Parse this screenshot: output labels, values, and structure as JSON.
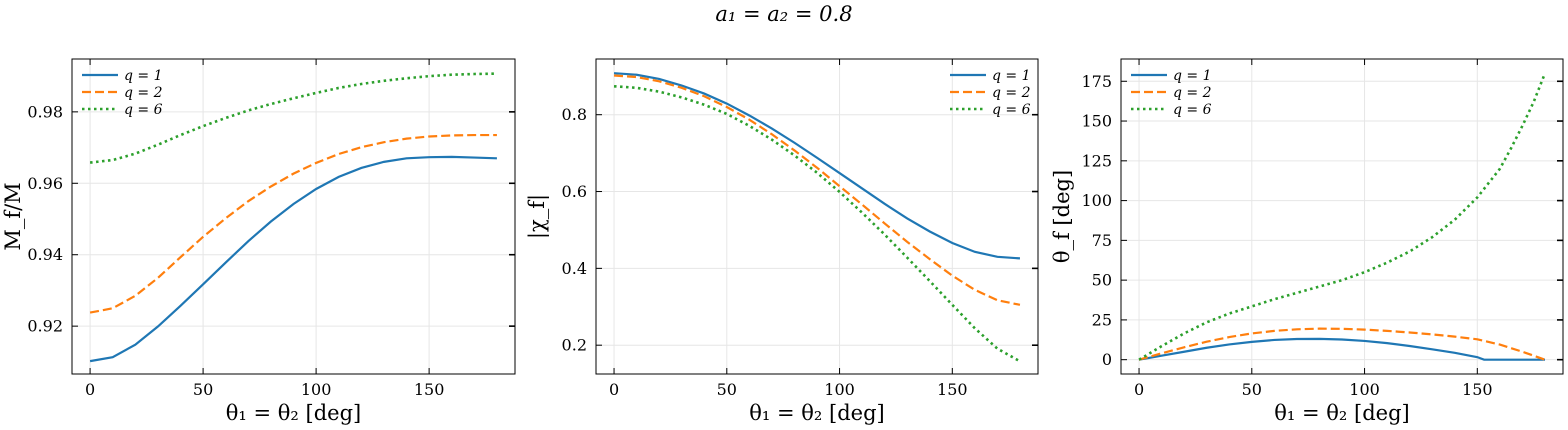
{
  "figure_title": "a₁ = a₂ = 0.8",
  "chart_data": [
    {
      "type": "line",
      "title": "",
      "xlabel": "θ₁ = θ₂ [deg]",
      "ylabel": "M_f/M",
      "xlim": [
        -8,
        188
      ],
      "ylim": [
        0.9066,
        0.9948
      ],
      "xticks": [
        0,
        50,
        100,
        150
      ],
      "yticks": [
        0.92,
        0.94,
        0.96,
        0.98
      ],
      "ytick_labels": [
        "0.92",
        "0.94",
        "0.96",
        "0.98"
      ],
      "grid": true,
      "legend_position": "top-left",
      "series": [
        {
          "name": "q = 1",
          "color": "#1f77b4",
          "style": "solid",
          "x": [
            0,
            10,
            20,
            30,
            40,
            50,
            60,
            70,
            80,
            90,
            100,
            110,
            120,
            130,
            140,
            150,
            160,
            170,
            180
          ],
          "y": [
            0.9102,
            0.9113,
            0.9148,
            0.9199,
            0.9257,
            0.9317,
            0.9378,
            0.9438,
            0.9493,
            0.9542,
            0.9584,
            0.9618,
            0.9643,
            0.966,
            0.967,
            0.9673,
            0.9674,
            0.9672,
            0.967
          ]
        },
        {
          "name": "q = 2",
          "color": "#ff7f0e",
          "style": "dashed",
          "x": [
            0,
            10,
            20,
            30,
            40,
            50,
            60,
            70,
            80,
            90,
            100,
            110,
            120,
            130,
            140,
            150,
            160,
            170,
            180
          ],
          "y": [
            0.9238,
            0.925,
            0.9285,
            0.9335,
            0.9393,
            0.945,
            0.9502,
            0.955,
            0.9591,
            0.9627,
            0.9657,
            0.9682,
            0.9701,
            0.9715,
            0.9725,
            0.9731,
            0.9734,
            0.9735,
            0.9735
          ]
        },
        {
          "name": "q = 6",
          "color": "#2ca02c",
          "style": "dotted",
          "x": [
            0,
            10,
            20,
            30,
            40,
            50,
            60,
            70,
            80,
            90,
            100,
            110,
            120,
            130,
            140,
            150,
            160,
            170,
            180
          ],
          "y": [
            0.9658,
            0.9665,
            0.9683,
            0.9708,
            0.9735,
            0.976,
            0.9783,
            0.9804,
            0.9822,
            0.9838,
            0.9853,
            0.9867,
            0.9878,
            0.9887,
            0.9894,
            0.99,
            0.9904,
            0.9906,
            0.9907
          ]
        }
      ]
    },
    {
      "type": "line",
      "title": "",
      "xlabel": "θ₁ = θ₂ [deg]",
      "ylabel": "|χ_f|",
      "xlim": [
        -8,
        188
      ],
      "ylim": [
        0.125,
        0.945
      ],
      "xticks": [
        0,
        50,
        100,
        150
      ],
      "yticks": [
        0.2,
        0.4,
        0.6,
        0.8
      ],
      "ytick_labels": [
        "0.2",
        "0.4",
        "0.6",
        "0.8"
      ],
      "grid": true,
      "legend_position": "top-right",
      "series": [
        {
          "name": "q = 1",
          "color": "#1f77b4",
          "style": "solid",
          "x": [
            0,
            10,
            20,
            30,
            40,
            50,
            60,
            70,
            80,
            90,
            100,
            110,
            120,
            130,
            140,
            150,
            160,
            170,
            180
          ],
          "y": [
            0.908,
            0.904,
            0.893,
            0.876,
            0.855,
            0.829,
            0.798,
            0.764,
            0.727,
            0.688,
            0.648,
            0.608,
            0.568,
            0.53,
            0.496,
            0.466,
            0.443,
            0.43,
            0.426
          ]
        },
        {
          "name": "q = 2",
          "color": "#ff7f0e",
          "style": "dashed",
          "x": [
            0,
            10,
            20,
            30,
            40,
            50,
            60,
            70,
            80,
            90,
            100,
            110,
            120,
            130,
            140,
            150,
            160,
            170,
            180
          ],
          "y": [
            0.902,
            0.898,
            0.887,
            0.87,
            0.848,
            0.82,
            0.787,
            0.749,
            0.707,
            0.662,
            0.614,
            0.566,
            0.517,
            0.469,
            0.424,
            0.381,
            0.344,
            0.317,
            0.305
          ]
        },
        {
          "name": "q = 6",
          "color": "#2ca02c",
          "style": "dotted",
          "x": [
            0,
            10,
            20,
            30,
            40,
            50,
            60,
            70,
            80,
            90,
            100,
            110,
            120,
            130,
            140,
            150,
            160,
            170,
            180
          ],
          "y": [
            0.874,
            0.87,
            0.86,
            0.845,
            0.826,
            0.802,
            0.771,
            0.735,
            0.694,
            0.649,
            0.599,
            0.545,
            0.488,
            0.428,
            0.367,
            0.305,
            0.244,
            0.191,
            0.158
          ]
        }
      ]
    },
    {
      "type": "line",
      "title": "",
      "xlabel": "θ₁ = θ₂ [deg]",
      "ylabel": "θ_f [deg]",
      "xlim": [
        -8,
        188
      ],
      "ylim": [
        -9,
        189
      ],
      "xticks": [
        0,
        50,
        100,
        150
      ],
      "yticks": [
        0,
        25,
        50,
        75,
        100,
        125,
        150,
        175
      ],
      "ytick_labels": [
        "0",
        "25",
        "50",
        "75",
        "100",
        "125",
        "150",
        "175"
      ],
      "grid": true,
      "legend_position": "top-left",
      "series": [
        {
          "name": "q = 1",
          "color": "#1f77b4",
          "style": "solid",
          "x": [
            0,
            10,
            20,
            30,
            40,
            50,
            60,
            70,
            80,
            90,
            100,
            110,
            120,
            130,
            140,
            150,
            153,
            160,
            170,
            180
          ],
          "y": [
            0,
            2.5,
            5.0,
            7.5,
            9.6,
            11.2,
            12.4,
            13.0,
            13.1,
            12.7,
            11.8,
            10.4,
            8.6,
            6.5,
            4.3,
            1.6,
            0,
            0,
            0,
            0
          ]
        },
        {
          "name": "q = 2",
          "color": "#ff7f0e",
          "style": "dashed",
          "x": [
            0,
            10,
            20,
            30,
            40,
            50,
            60,
            70,
            80,
            90,
            100,
            110,
            120,
            130,
            140,
            150,
            160,
            170,
            180
          ],
          "y": [
            0,
            4.0,
            7.8,
            11.3,
            14.2,
            16.5,
            18.1,
            19.1,
            19.5,
            19.4,
            18.9,
            18.1,
            17.1,
            15.9,
            14.5,
            12.8,
            9.5,
            5.0,
            0
          ]
        },
        {
          "name": "q = 6",
          "color": "#2ca02c",
          "style": "dotted",
          "x": [
            0,
            10,
            20,
            30,
            40,
            50,
            60,
            70,
            80,
            90,
            100,
            110,
            120,
            130,
            140,
            150,
            160,
            165,
            170,
            175,
            180
          ],
          "y": [
            0,
            8.5,
            16.5,
            23.5,
            29.0,
            33.5,
            38.0,
            42.0,
            46.0,
            50.0,
            55.0,
            61.0,
            68.0,
            77.0,
            88.0,
            102.0,
            120.0,
            133.0,
            147.0,
            162.0,
            180.0
          ]
        }
      ]
    }
  ]
}
